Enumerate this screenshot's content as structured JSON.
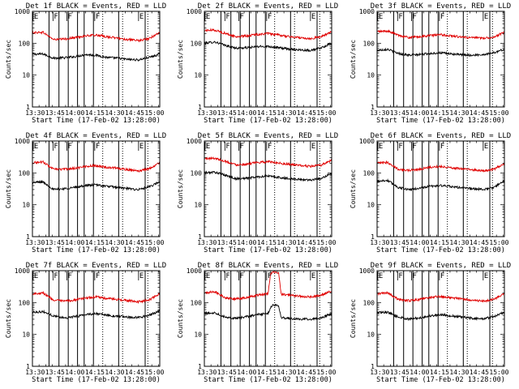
{
  "colors": {
    "events": "#000000",
    "lld": "#e00000",
    "axis": "#000000"
  },
  "chart_data": {
    "type": "line",
    "layout": "3x3 grid",
    "shared": {
      "xlabel": "Start Time (17-Feb-02 13:28:00)",
      "ylabel": "Counts/sec",
      "x_tick_labels": [
        "13:30",
        "13:45",
        "14:00",
        "14:15",
        "14:30",
        "14:45",
        "15:00"
      ],
      "x_ticks_min": [
        2,
        17,
        32,
        47,
        62,
        77,
        92
      ],
      "xlim_min": [
        0,
        96
      ],
      "ylim": [
        1,
        1000
      ],
      "y_scale": "log",
      "y_tick_labels": [
        "1",
        "10",
        "100",
        "1000"
      ],
      "y_ticks": [
        1,
        10,
        100,
        1000
      ],
      "solid_vlines_min": [
        12.5,
        20,
        27,
        34,
        39,
        46,
        65,
        85
      ],
      "dotted_vlines_min": [
        53,
        68,
        87
      ],
      "markers": [
        {
          "x_min": 0.5,
          "label": "E"
        },
        {
          "x_min": 15.5,
          "label": "F"
        },
        {
          "x_min": 26,
          "label": "F"
        },
        {
          "x_min": 47,
          "label": "F"
        },
        {
          "x_min": 80,
          "label": "E"
        }
      ]
    },
    "panels": [
      {
        "title": "Det 1f BLACK = Events, RED = LLD",
        "series": [
          {
            "name": "Events",
            "x": [
              0,
              8,
              16,
              24,
              32,
              40,
              48,
              56,
              64,
              72,
              80,
              88,
              96
            ],
            "y": [
              45,
              46,
              34,
              35,
              38,
              44,
              42,
              36,
              34,
              31,
              30,
              36,
              45
            ]
          },
          {
            "name": "LLD",
            "x": [
              0,
              8,
              16,
              24,
              32,
              40,
              48,
              56,
              64,
              72,
              80,
              88,
              96
            ],
            "y": [
              215,
              220,
              130,
              135,
              150,
              170,
              180,
              160,
              145,
              130,
              120,
              140,
              220
            ]
          }
        ]
      },
      {
        "title": "Det 2f BLACK = Events, RED = LLD",
        "series": [
          {
            "name": "Events",
            "x": [
              0,
              8,
              16,
              24,
              32,
              40,
              48,
              56,
              64,
              72,
              80,
              88,
              96
            ],
            "y": [
              100,
              110,
              85,
              70,
              72,
              78,
              80,
              72,
              66,
              62,
              60,
              70,
              100
            ]
          },
          {
            "name": "LLD",
            "x": [
              0,
              8,
              16,
              24,
              32,
              40,
              48,
              56,
              64,
              72,
              80,
              88,
              96
            ],
            "y": [
              250,
              260,
              200,
              160,
              170,
              190,
              200,
              180,
              160,
              150,
              140,
              160,
              230
            ]
          }
        ]
      },
      {
        "title": "Det 3f BLACK = Events, RED = LLD",
        "series": [
          {
            "name": "Events",
            "x": [
              0,
              8,
              16,
              24,
              32,
              40,
              48,
              56,
              64,
              72,
              80,
              88,
              96
            ],
            "y": [
              60,
              65,
              48,
              42,
              44,
              48,
              50,
              46,
              43,
              42,
              44,
              50,
              65
            ]
          },
          {
            "name": "LLD",
            "x": [
              0,
              8,
              16,
              24,
              32,
              40,
              48,
              56,
              64,
              72,
              80,
              88,
              96
            ],
            "y": [
              230,
              240,
              180,
              150,
              160,
              175,
              185,
              170,
              155,
              148,
              145,
              155,
              220
            ]
          }
        ]
      },
      {
        "title": "Det 4f BLACK = Events, RED = LLD",
        "series": [
          {
            "name": "Events",
            "x": [
              0,
              8,
              16,
              24,
              32,
              40,
              48,
              56,
              64,
              72,
              80,
              88,
              96
            ],
            "y": [
              50,
              52,
              30,
              32,
              35,
              40,
              42,
              38,
              35,
              32,
              30,
              36,
              52
            ]
          },
          {
            "name": "LLD",
            "x": [
              0,
              8,
              16,
              24,
              32,
              40,
              48,
              56,
              64,
              72,
              80,
              88,
              96
            ],
            "y": [
              210,
              220,
              130,
              130,
              140,
              160,
              170,
              150,
              140,
              125,
              115,
              135,
              210
            ]
          }
        ]
      },
      {
        "title": "Det 5f BLACK = Events, RED = LLD",
        "series": [
          {
            "name": "Events",
            "x": [
              0,
              8,
              16,
              24,
              32,
              40,
              48,
              56,
              64,
              72,
              80,
              88,
              96
            ],
            "y": [
              100,
              105,
              85,
              65,
              68,
              75,
              80,
              72,
              66,
              62,
              60,
              68,
              95
            ]
          },
          {
            "name": "LLD",
            "x": [
              0,
              8,
              16,
              24,
              32,
              40,
              48,
              56,
              64,
              72,
              80,
              88,
              96
            ],
            "y": [
              280,
              290,
              230,
              180,
              190,
              210,
              225,
              205,
              185,
              170,
              160,
              175,
              250
            ]
          }
        ]
      },
      {
        "title": "Det 6f BLACK = Events, RED = LLD",
        "series": [
          {
            "name": "Events",
            "x": [
              0,
              8,
              16,
              24,
              32,
              40,
              48,
              56,
              64,
              72,
              80,
              88,
              96
            ],
            "y": [
              55,
              58,
              35,
              30,
              33,
              38,
              40,
              37,
              34,
              32,
              30,
              35,
              55
            ]
          },
          {
            "name": "LLD",
            "x": [
              0,
              8,
              16,
              24,
              32,
              40,
              48,
              56,
              64,
              72,
              80,
              88,
              96
            ],
            "y": [
              200,
              215,
              130,
              120,
              130,
              150,
              160,
              145,
              135,
              125,
              115,
              130,
              200
            ]
          }
        ]
      },
      {
        "title": "Det 7f BLACK = Events, RED = LLD",
        "series": [
          {
            "name": "Events",
            "x": [
              0,
              8,
              16,
              24,
              32,
              40,
              48,
              56,
              64,
              72,
              80,
              88,
              96
            ],
            "y": [
              50,
              52,
              38,
              33,
              36,
              42,
              45,
              40,
              37,
              35,
              34,
              40,
              55
            ]
          },
          {
            "name": "LLD",
            "x": [
              0,
              8,
              16,
              24,
              32,
              40,
              48,
              56,
              64,
              72,
              80,
              88,
              96
            ],
            "y": [
              190,
              200,
              120,
              110,
              120,
              140,
              150,
              135,
              125,
              115,
              105,
              120,
              190
            ]
          }
        ]
      },
      {
        "title": "Det 8f BLACK = Events, RED = LLD",
        "series": [
          {
            "name": "Events",
            "x": [
              0,
              8,
              16,
              24,
              32,
              40,
              48,
              50,
              52,
              56,
              58,
              64,
              72,
              80,
              88,
              96
            ],
            "y": [
              45,
              48,
              35,
              32,
              36,
              42,
              45,
              70,
              85,
              80,
              34,
              32,
              30,
              30,
              33,
              45
            ]
          },
          {
            "name": "LLD",
            "x": [
              0,
              8,
              16,
              24,
              32,
              40,
              48,
              50,
              52,
              56,
              58,
              64,
              72,
              80,
              88,
              96
            ],
            "y": [
              200,
              220,
              140,
              130,
              145,
              170,
              190,
              800,
              900,
              850,
              180,
              170,
              160,
              150,
              170,
              230
            ]
          }
        ]
      },
      {
        "title": "Det 9f BLACK = Events, RED = LLD",
        "series": [
          {
            "name": "Events",
            "x": [
              0,
              8,
              16,
              24,
              32,
              40,
              48,
              56,
              64,
              72,
              80,
              88,
              96
            ],
            "y": [
              48,
              50,
              35,
              30,
              33,
              38,
              42,
              38,
              35,
              32,
              31,
              36,
              50
            ]
          },
          {
            "name": "LLD",
            "x": [
              0,
              8,
              16,
              24,
              32,
              40,
              48,
              56,
              64,
              72,
              80,
              88,
              96
            ],
            "y": [
              190,
              200,
              125,
              115,
              125,
              145,
              155,
              140,
              130,
              120,
              110,
              125,
              195
            ]
          }
        ]
      }
    ]
  }
}
